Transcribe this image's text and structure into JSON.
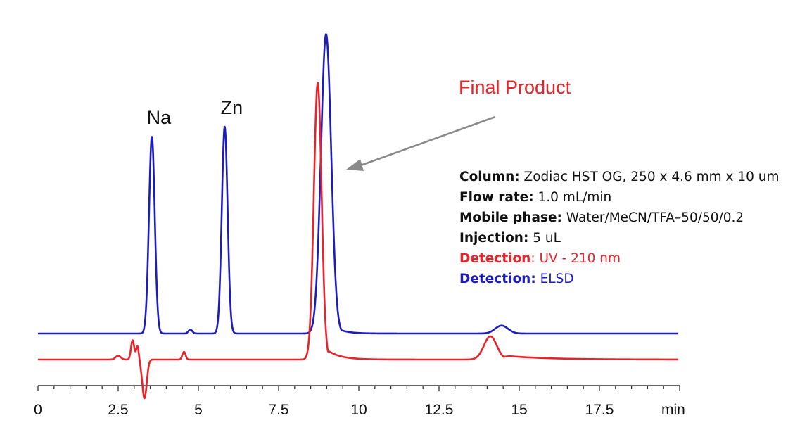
{
  "chart_data": {
    "type": "line",
    "xlabel": "",
    "x_unit": "min",
    "ylabel": "",
    "xlim": [
      0,
      20
    ],
    "xticks": [
      "0",
      "2.5",
      "5",
      "7.5",
      "10",
      "12.5",
      "15",
      "17.5"
    ],
    "grid": false,
    "legend": "none",
    "series": [
      {
        "detector": "ELSD",
        "color": "#1d1dbf",
        "peaks": [
          {
            "label": "Na",
            "rt": 3.55,
            "height": 1.0,
            "width": 0.09
          },
          {
            "label": "",
            "rt": 4.75,
            "height": 0.02,
            "width": 0.06
          },
          {
            "label": "Zn",
            "rt": 5.82,
            "height": 1.05,
            "width": 0.09
          },
          {
            "label": "",
            "rt": 8.98,
            "height": 1.52,
            "width": 0.16,
            "tail": 0.3
          },
          {
            "label": "",
            "rt": 14.45,
            "height": 0.04,
            "width": 0.2
          }
        ]
      },
      {
        "detector": "UV - 210 nm",
        "color": "#e8242a",
        "peaks": [
          {
            "label": "",
            "rt": 2.5,
            "height": 0.02,
            "width": 0.08
          },
          {
            "label": "",
            "rt": 2.95,
            "height": 0.1,
            "width": 0.05
          },
          {
            "label": "",
            "rt": 3.1,
            "height": 0.07,
            "width": 0.04
          },
          {
            "label": "",
            "rt": 3.32,
            "height": -0.2,
            "width": 0.07
          },
          {
            "label": "",
            "rt": 4.55,
            "height": 0.04,
            "width": 0.05
          },
          {
            "label": "",
            "rt": 8.72,
            "height": 1.43,
            "width": 0.12,
            "tail": 0.4
          },
          {
            "label": "",
            "rt": 14.1,
            "height": 0.12,
            "width": 0.2,
            "tail": 1.3
          }
        ]
      }
    ],
    "annotation": {
      "label": "Final Product"
    }
  },
  "conditions": [
    {
      "label": "Column:",
      "value": " Zodiac HST OG, 250 x 4.6 mm x 10 um",
      "color": "#111111"
    },
    {
      "label": "Flow rate:",
      "value": " 1.0 mL/min",
      "color": "#111111"
    },
    {
      "label": "Mobile phase:",
      "value": " Water/MeCN/TFA–50/50/0.2",
      "color": "#111111"
    },
    {
      "label": "Injection:",
      "value": " 5 uL",
      "color": "#111111"
    },
    {
      "label": "Detection",
      "value": ": UV - 210 nm",
      "color": "#e8242a"
    },
    {
      "label": "Detection:",
      "value": " ELSD",
      "color": "#1d1dbf"
    }
  ]
}
